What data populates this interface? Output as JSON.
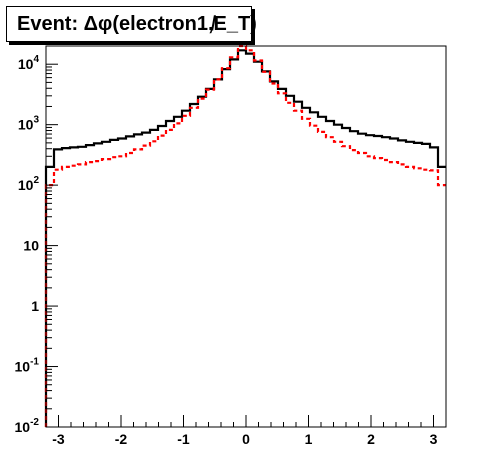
{
  "chart_data": {
    "type": "histogram",
    "title": "Event: Δφ(electron1,̸E_T)",
    "xlabel": "",
    "ylabel": "",
    "xlim": [
      -3.2,
      3.2
    ],
    "ylim": [
      0.01,
      20000
    ],
    "y_scale": "log",
    "grid": false,
    "legend": "none",
    "x_ticks": [
      -3,
      -2,
      -1,
      0,
      1,
      2,
      3
    ],
    "x_tick_labels": [
      "-3",
      "-2",
      "-1",
      "0",
      "1",
      "2",
      "3"
    ],
    "y_ticks": [
      {
        "value": 0.01,
        "base": "10",
        "exp": "-2"
      },
      {
        "value": 0.1,
        "base": "10",
        "exp": "-1"
      },
      {
        "value": 1,
        "base": "1",
        "exp": ""
      },
      {
        "value": 10,
        "base": "10",
        "exp": ""
      },
      {
        "value": 100,
        "base": "10",
        "exp": "2"
      },
      {
        "value": 1000,
        "base": "10",
        "exp": "3"
      },
      {
        "value": 10000,
        "base": "10",
        "exp": "4"
      }
    ],
    "bin_edges": [
      -3.2,
      -3.072,
      -2.944,
      -2.816,
      -2.688,
      -2.56,
      -2.432,
      -2.304,
      -2.176,
      -2.048,
      -1.92,
      -1.792,
      -1.664,
      -1.536,
      -1.408,
      -1.28,
      -1.152,
      -1.024,
      -0.896,
      -0.768,
      -0.64,
      -0.512,
      -0.384,
      -0.256,
      -0.128,
      0.0,
      0.128,
      0.256,
      0.384,
      0.512,
      0.64,
      0.768,
      0.896,
      1.024,
      1.152,
      1.28,
      1.408,
      1.536,
      1.664,
      1.792,
      1.92,
      2.048,
      2.176,
      2.304,
      2.432,
      2.56,
      2.688,
      2.816,
      2.944,
      3.072,
      3.2
    ],
    "series": [
      {
        "color": "#000000",
        "style": "solid",
        "values": [
          200,
          390,
          410,
          420,
          430,
          460,
          490,
          520,
          560,
          590,
          640,
          690,
          740,
          820,
          950,
          1150,
          1350,
          1700,
          2200,
          2900,
          3900,
          5600,
          8300,
          12000,
          17000,
          15000,
          11000,
          7600,
          5200,
          3900,
          3000,
          2400,
          1900,
          1600,
          1350,
          1150,
          1000,
          880,
          780,
          710,
          670,
          650,
          620,
          590,
          550,
          520,
          500,
          480,
          420,
          200
        ]
      },
      {
        "color": "#ff0000",
        "style": "dashed",
        "values": [
          100,
          180,
          200,
          210,
          220,
          240,
          250,
          270,
          290,
          300,
          340,
          390,
          450,
          530,
          660,
          820,
          1050,
          1400,
          1900,
          2700,
          3800,
          5600,
          8600,
          13000,
          20000,
          17000,
          11500,
          7500,
          4800,
          3300,
          2300,
          1700,
          1250,
          960,
          760,
          620,
          520,
          440,
          380,
          340,
          300,
          280,
          260,
          240,
          220,
          200,
          190,
          180,
          175,
          100
        ]
      }
    ]
  }
}
